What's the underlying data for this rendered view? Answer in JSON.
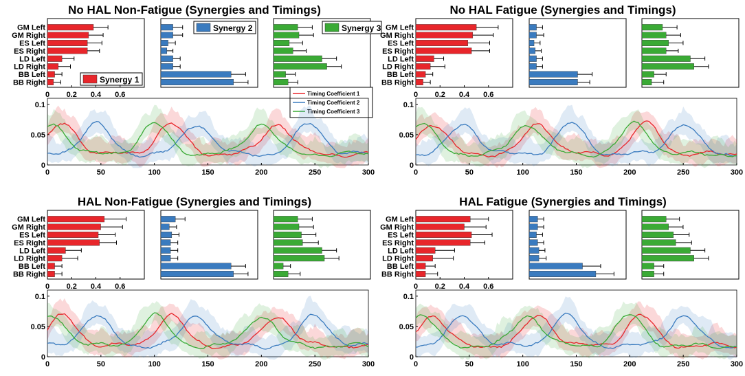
{
  "colors": {
    "synergy1": "#e8262b",
    "synergy2": "#3a7bbf",
    "synergy3": "#3aaa35"
  },
  "muscles": [
    "GM Left",
    "GM Right",
    "ES Left",
    "ES Right",
    "LD Left",
    "LD Right",
    "BB Left",
    "BB Right"
  ],
  "bar_xticks": [
    "0",
    "0.2",
    "0.4",
    "0.6"
  ],
  "line_xticks": [
    "0",
    "50",
    "100",
    "150",
    "200",
    "250",
    "300"
  ],
  "line_yticks": [
    "0",
    "0.05",
    "0.1"
  ],
  "synergy_legend": [
    "Synergy 1",
    "Synergy 2",
    "Synergy 3"
  ],
  "timing_legend": [
    "Timing Coefficient 1",
    "Timing Coefficient 2",
    "Timing Coefficient 3"
  ],
  "chart_data": [
    {
      "type": "bar",
      "title": "No HAL Non-Fatigue (Synergies and Timings)",
      "series": [
        {
          "name": "Synergy 1",
          "values": [
            0.38,
            0.34,
            0.33,
            0.33,
            0.12,
            0.09,
            0.06,
            0.05
          ],
          "errors": [
            0.12,
            0.12,
            0.12,
            0.1,
            0.1,
            0.1,
            0.06,
            0.06
          ]
        },
        {
          "name": "Synergy 2",
          "values": [
            0.1,
            0.1,
            0.06,
            0.05,
            0.1,
            0.1,
            0.58,
            0.6
          ],
          "errors": [
            0.08,
            0.08,
            0.06,
            0.05,
            0.06,
            0.06,
            0.12,
            0.12
          ]
        },
        {
          "name": "Synergy 3",
          "values": [
            0.2,
            0.21,
            0.13,
            0.16,
            0.4,
            0.44,
            0.1,
            0.12
          ],
          "errors": [
            0.12,
            0.12,
            0.11,
            0.11,
            0.12,
            0.12,
            0.08,
            0.08
          ]
        }
      ],
      "timing": {
        "xlim": [
          0,
          300
        ],
        "ylim": [
          0,
          0.11
        ],
        "peaks": [
          [
            15,
            115,
            215
          ],
          [
            45,
            140,
            245
          ],
          [
            5,
            100,
            200
          ]
        ]
      }
    },
    {
      "type": "bar",
      "title": "No HAL Fatigue (Synergies and Timings)",
      "series": [
        {
          "name": "Synergy 1",
          "values": [
            0.5,
            0.47,
            0.43,
            0.46,
            0.15,
            0.12,
            0.08,
            0.06
          ],
          "errors": [
            0.18,
            0.17,
            0.18,
            0.15,
            0.08,
            0.12,
            0.06,
            0.06
          ]
        },
        {
          "name": "Synergy 2",
          "values": [
            0.06,
            0.06,
            0.04,
            0.05,
            0.06,
            0.06,
            0.4,
            0.4
          ],
          "errors": [
            0.05,
            0.06,
            0.05,
            0.05,
            0.05,
            0.05,
            0.12,
            0.1
          ]
        },
        {
          "name": "Synergy 3",
          "values": [
            0.17,
            0.2,
            0.22,
            0.2,
            0.4,
            0.43,
            0.1,
            0.08
          ],
          "errors": [
            0.12,
            0.12,
            0.12,
            0.1,
            0.12,
            0.12,
            0.1,
            0.1
          ]
        }
      ],
      "timing": {
        "xlim": [
          0,
          300
        ],
        "ylim": [
          0,
          0.11
        ],
        "peaks": [
          [
            15,
            115,
            215
          ],
          [
            45,
            145,
            250
          ],
          [
            5,
            105,
            205
          ]
        ]
      }
    },
    {
      "type": "bar",
      "title": "HAL Non-Fatigue (Synergies and Timings)",
      "series": [
        {
          "name": "Synergy 1",
          "values": [
            0.47,
            0.44,
            0.42,
            0.43,
            0.15,
            0.12,
            0.06,
            0.06
          ],
          "errors": [
            0.18,
            0.18,
            0.14,
            0.14,
            0.13,
            0.13,
            0.06,
            0.06
          ]
        },
        {
          "name": "Synergy 2",
          "values": [
            0.12,
            0.07,
            0.09,
            0.08,
            0.08,
            0.08,
            0.58,
            0.6
          ],
          "errors": [
            0.08,
            0.06,
            0.06,
            0.06,
            0.06,
            0.06,
            0.12,
            0.12
          ]
        },
        {
          "name": "Synergy 3",
          "values": [
            0.2,
            0.21,
            0.23,
            0.24,
            0.4,
            0.42,
            0.08,
            0.12
          ],
          "errors": [
            0.12,
            0.12,
            0.12,
            0.13,
            0.12,
            0.12,
            0.06,
            0.1
          ]
        }
      ],
      "timing": {
        "xlim": [
          0,
          300
        ],
        "ylim": [
          0,
          0.11
        ],
        "peaks": [
          [
            15,
            115,
            215
          ],
          [
            45,
            140,
            250
          ],
          [
            5,
            100,
            200
          ]
        ]
      }
    },
    {
      "type": "bar",
      "title": "HAL Fatigue (Synergies and Timings)",
      "series": [
        {
          "name": "Synergy 1",
          "values": [
            0.45,
            0.4,
            0.46,
            0.45,
            0.16,
            0.14,
            0.08,
            0.08
          ],
          "errors": [
            0.15,
            0.18,
            0.17,
            0.12,
            0.16,
            0.17,
            0.08,
            0.1
          ]
        },
        {
          "name": "Synergy 2",
          "values": [
            0.07,
            0.07,
            0.06,
            0.07,
            0.08,
            0.08,
            0.44,
            0.55
          ],
          "errors": [
            0.05,
            0.05,
            0.05,
            0.05,
            0.05,
            0.06,
            0.15,
            0.15
          ]
        },
        {
          "name": "Synergy 3",
          "values": [
            0.2,
            0.22,
            0.26,
            0.28,
            0.4,
            0.43,
            0.1,
            0.1
          ],
          "errors": [
            0.11,
            0.12,
            0.13,
            0.13,
            0.12,
            0.12,
            0.08,
            0.08
          ]
        }
      ],
      "timing": {
        "xlim": [
          0,
          300
        ],
        "ylim": [
          0,
          0.11
        ],
        "peaks": [
          [
            15,
            115,
            210
          ],
          [
            45,
            140,
            250
          ],
          [
            5,
            105,
            200
          ]
        ]
      }
    }
  ]
}
